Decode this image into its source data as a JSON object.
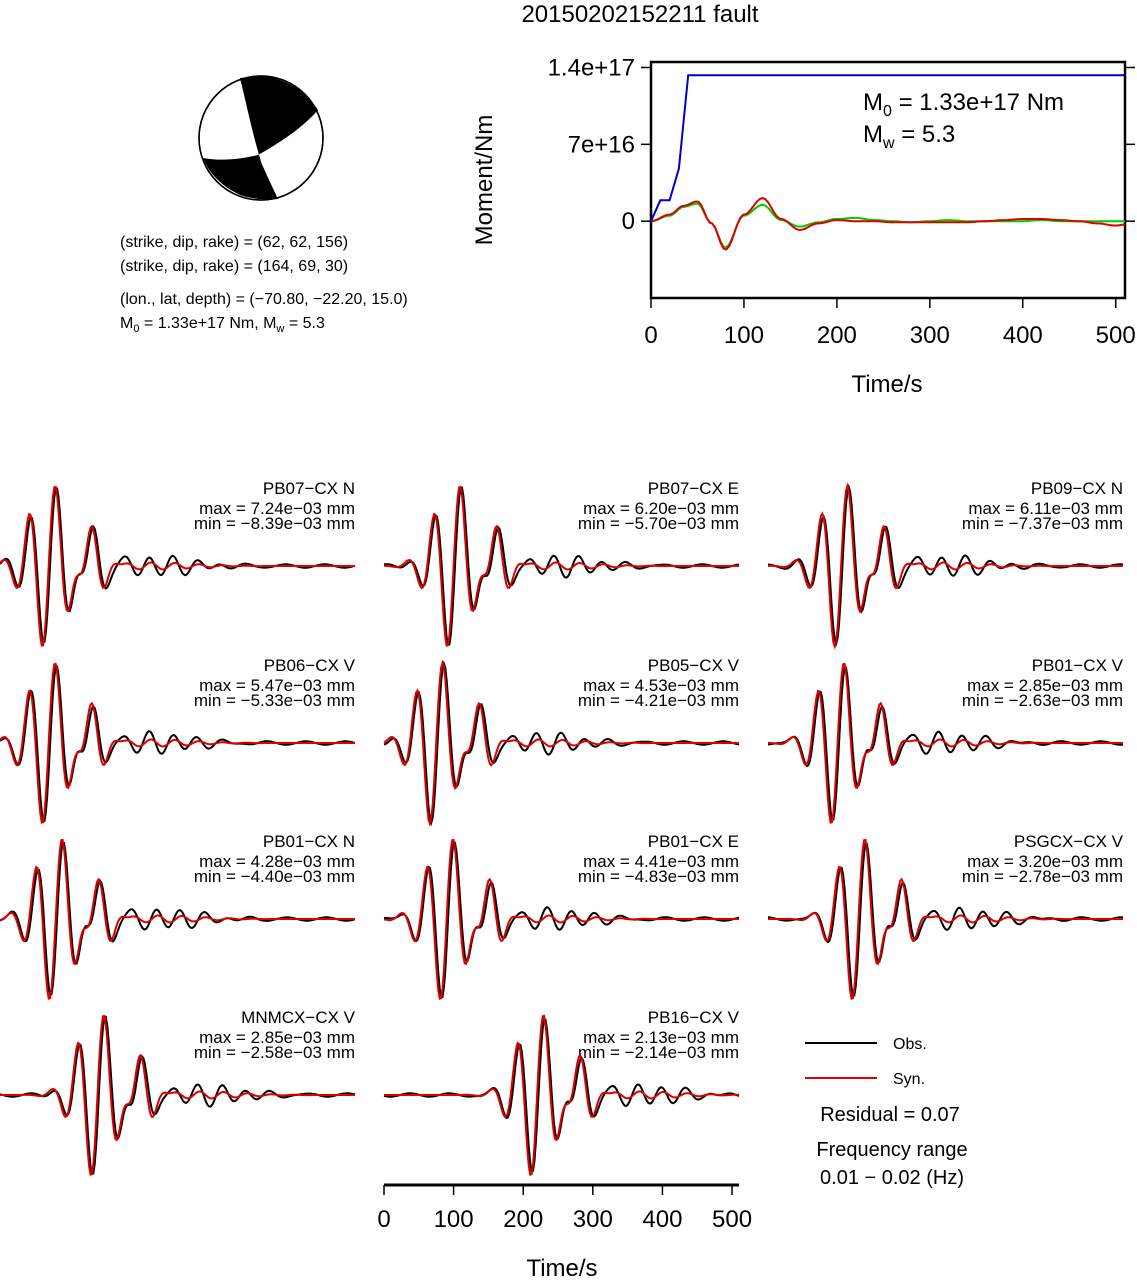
{
  "title": "20150202152211 fault",
  "mechanism": {
    "beachball_colors": {
      "compression": "#000000",
      "dilatation": "#ffffff"
    },
    "line1": "(strike, dip, rake) = (62, 62, 156)",
    "line2": "(strike, dip, rake) = (164, 69, 30)",
    "line3": "(lon., lat, depth) = (−70.80, −22.20, 15.0)",
    "line4_m0": "M",
    "line4_m0_sub": "0",
    "line4_m0_val": " = 1.33e+17 Nm, M",
    "line4_mw_sub": "w",
    "line4_mw_val": " = 5.3"
  },
  "moment_chart": {
    "annot_m0": "M",
    "annot_m0_sub": "0",
    "annot_m0_val": " = 1.33e+17 Nm",
    "annot_mw": "M",
    "annot_mw_sub": "w",
    "annot_mw_val": " = 5.3"
  },
  "legend": {
    "obs_label": "Obs.",
    "syn_label": "Syn.",
    "residual": "Residual = 0.07",
    "freq_title": "Frequency range",
    "freq_range": "0.01 − 0.02 (Hz)"
  },
  "chart_data": [
    {
      "type": "line",
      "ylabel": "Moment/Nm",
      "xlabel": "Time/s",
      "xlim": [
        0,
        510
      ],
      "ylim": [
        -7e+16,
        1.45e+17
      ],
      "xticks": [
        0,
        100,
        200,
        300,
        400,
        500
      ],
      "yticks": [
        {
          "v": 0,
          "label": "0"
        },
        {
          "v": 7e+16,
          "label": "7e+16"
        },
        {
          "v": 1.4e+17,
          "label": "1.4e+17"
        }
      ],
      "series": [
        {
          "color": "#0000cc",
          "x": [
            0,
            10,
            20,
            30,
            40,
            510
          ],
          "y": [
            0,
            1.9e+16,
            1.9e+16,
            4.8e+16,
            1.33e+17,
            1.33e+17
          ]
        },
        {
          "color": "#00cc00",
          "x": [
            0,
            20,
            35,
            50,
            65,
            80,
            100,
            120,
            140,
            160,
            180,
            200,
            220,
            240,
            260,
            280,
            300,
            320,
            340,
            360,
            380,
            400,
            420,
            440,
            460,
            480,
            500,
            510
          ],
          "y": [
            0,
            5000000000000000.0,
            1.3e+16,
            1.6e+16,
            -2000000000000000.0,
            -2.4e+16,
            5000000000000000.0,
            1.5e+16,
            1000000000000000.0,
            -5000000000000000.0,
            -1000000000000000.0,
            2000000000000000.0,
            3000000000000000.0,
            1000000000000000.0,
            0,
            -1000000000000000.0,
            0,
            1000000000000000.0,
            0,
            0,
            0,
            0,
            1000000000000000.0,
            0,
            0,
            0,
            0,
            0
          ]
        },
        {
          "color": "#dd0000",
          "x": [
            0,
            20,
            35,
            50,
            65,
            80,
            100,
            120,
            140,
            160,
            180,
            200,
            220,
            240,
            260,
            280,
            300,
            320,
            340,
            360,
            380,
            400,
            420,
            440,
            460,
            480,
            500,
            510
          ],
          "y": [
            0,
            6000000000000000.0,
            1.4e+16,
            1.8e+16,
            -2000000000000000.0,
            -2.6e+16,
            6000000000000000.0,
            2.1e+16,
            2000000000000000.0,
            -8000000000000000.0,
            -2000000000000000.0,
            1000000000000000.0,
            0,
            0,
            -1000000000000000.0,
            -1000000000000000.0,
            -1000000000000000.0,
            -1000000000000000.0,
            -1000000000000000.0,
            0,
            1000000000000000.0,
            2000000000000000.0,
            2000000000000000.0,
            1000000000000000.0,
            0,
            -2000000000000000.0,
            -4000000000000000.0,
            -3000000000000000.0
          ]
        }
      ]
    },
    {
      "type": "line",
      "xlabel": "Time/s",
      "xlim": [
        0,
        510
      ],
      "xticks": [
        0,
        100,
        200,
        300,
        400,
        500
      ],
      "legend": {
        "placement": "bottom-right"
      },
      "panels": [
        {
          "name": "PB07−CX N",
          "max": "max = 7.24e−03 mm",
          "min": "min = −8.39e−03 mm",
          "t0": 70,
          "amp": 1.0,
          "late": 1.0
        },
        {
          "name": "PB07−CX E",
          "max": "max = 6.20e−03 mm",
          "min": "min = −5.70e−03 mm",
          "t0": 100,
          "amp": 1.0,
          "late": 0.8
        },
        {
          "name": "PB09−CX N",
          "max": "max = 6.11e−03 mm",
          "min": "min = −7.37e−03 mm",
          "t0": 105,
          "amp": 1.0,
          "late": 0.8
        },
        {
          "name": "PB06−CX V",
          "max": "max = 5.47e−03 mm",
          "min": "min = −5.33e−03 mm",
          "t0": 70,
          "amp": 1.0,
          "late": 0.5
        },
        {
          "name": "PB05−CX V",
          "max": "max = 4.53e−03 mm",
          "min": "min = −4.21e−03 mm",
          "t0": 75,
          "amp": 1.0,
          "late": 0.4
        },
        {
          "name": "PB01−CX V",
          "max": "max = 2.85e−03 mm",
          "min": "min = −2.63e−03 mm",
          "t0": 100,
          "amp": 1.0,
          "late": 0.4
        },
        {
          "name": "PB01−CX N",
          "max": "max = 4.28e−03 mm",
          "min": "min = −4.40e−03 mm",
          "t0": 80,
          "amp": 1.0,
          "late": 0.4
        },
        {
          "name": "PB01−CX E",
          "max": "max = 4.41e−03 mm",
          "min": "min = −4.83e−03 mm",
          "t0": 90,
          "amp": 1.0,
          "late": 0.4
        },
        {
          "name": "PSGCX−CX V",
          "max": "max = 3.20e−03 mm",
          "min": "min = −2.78e−03 mm",
          "t0": 130,
          "amp": 1.0,
          "late": 0.4
        },
        {
          "name": "MNMCX−CX V",
          "max": "max = 2.85e−03 mm",
          "min": "min = −2.58e−03 mm",
          "t0": 140,
          "amp": 1.0,
          "late": 0.4
        },
        {
          "name": "PB16−CX V",
          "max": "max = 2.13e−03 mm",
          "min": "min = −2.14e−03 mm",
          "t0": 220,
          "amp": 1.0,
          "late": 0.4
        }
      ],
      "series_colors": {
        "Obs.": "#000000",
        "Syn.": "#dd0000"
      }
    }
  ]
}
